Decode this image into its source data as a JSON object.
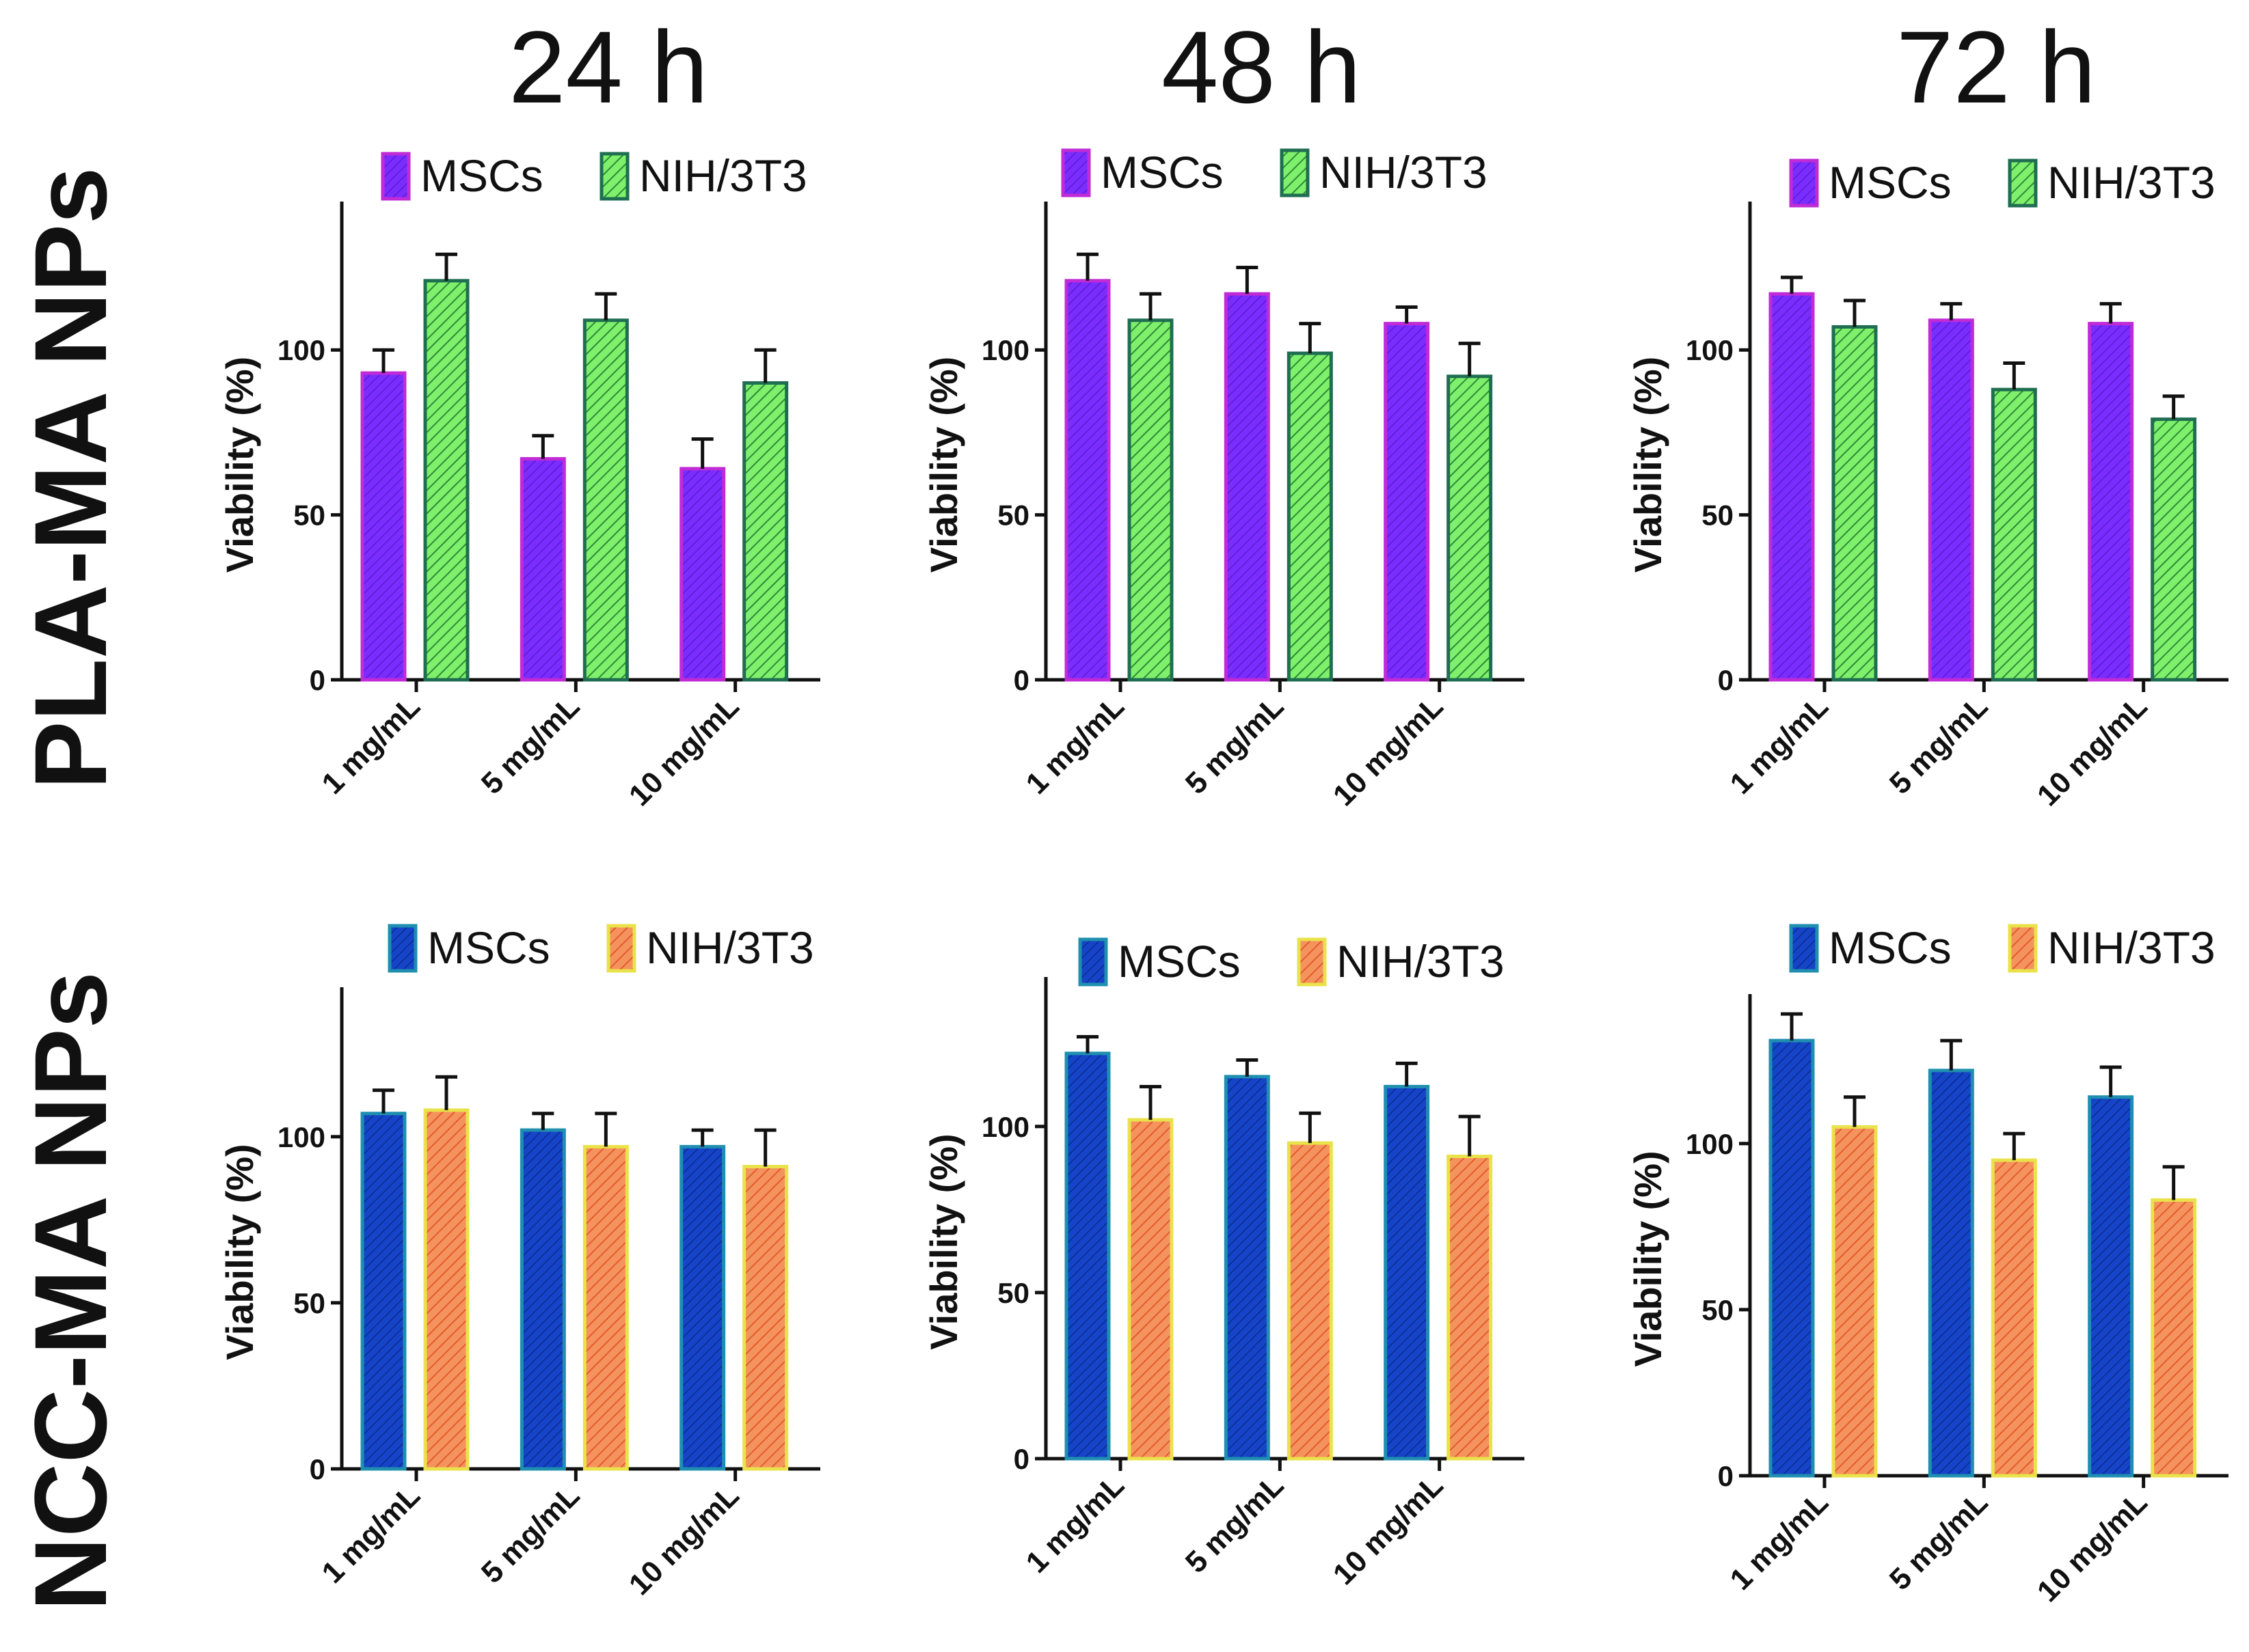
{
  "column_titles": [
    "24 h",
    "48 h",
    "72 h"
  ],
  "row_titles": [
    "PLA-MA NPs",
    "NCC-MA NPs"
  ],
  "colors": {
    "pla_mscs_fill": "#7b2cff",
    "pla_mscs_border": "#c02bd6",
    "pla_nih_fill": "#66e85a",
    "pla_nih_border": "#1f6e52",
    "ncc_mscs_fill": "#1544c8",
    "ncc_mscs_border": "#1f8fb0",
    "ncc_nih_fill": "#f07a46",
    "ncc_nih_border": "#e9e24a"
  },
  "chart_data": [
    {
      "type": "bar",
      "row": "PLA-MA NPs",
      "time": "24 h",
      "ylabel": "Viability (%)",
      "ylim": [
        0,
        145
      ],
      "yticks": [
        0,
        50,
        100
      ],
      "categories": [
        "1 mg/mL",
        "5 mg/mL",
        "10 mg/mL"
      ],
      "series": [
        {
          "name": "MSCs",
          "values": [
            93,
            67,
            64
          ],
          "errors": [
            7,
            7,
            9
          ]
        },
        {
          "name": "NIH/3T3",
          "values": [
            121,
            109,
            90
          ],
          "errors": [
            8,
            8,
            10
          ]
        }
      ]
    },
    {
      "type": "bar",
      "row": "PLA-MA NPs",
      "time": "48 h",
      "ylabel": "Viability (%)",
      "ylim": [
        0,
        145
      ],
      "yticks": [
        0,
        50,
        100
      ],
      "categories": [
        "1 mg/mL",
        "5 mg/mL",
        "10 mg/mL"
      ],
      "series": [
        {
          "name": "MSCs",
          "values": [
            121,
            117,
            108
          ],
          "errors": [
            8,
            8,
            5
          ]
        },
        {
          "name": "NIH/3T3",
          "values": [
            109,
            99,
            92
          ],
          "errors": [
            8,
            9,
            10
          ]
        }
      ]
    },
    {
      "type": "bar",
      "row": "PLA-MA NPs",
      "time": "72 h",
      "ylabel": "Viability (%)",
      "ylim": [
        0,
        145
      ],
      "yticks": [
        0,
        50,
        100
      ],
      "categories": [
        "1 mg/mL",
        "5 mg/mL",
        "10 mg/mL"
      ],
      "series": [
        {
          "name": "MSCs",
          "values": [
            117,
            109,
            108
          ],
          "errors": [
            5,
            5,
            6
          ]
        },
        {
          "name": "NIH/3T3",
          "values": [
            107,
            88,
            79
          ],
          "errors": [
            8,
            8,
            7
          ]
        }
      ]
    },
    {
      "type": "bar",
      "row": "NCC-MA NPs",
      "time": "24 h",
      "ylabel": "Viability (%)",
      "ylim": [
        0,
        145
      ],
      "yticks": [
        0,
        50,
        100
      ],
      "categories": [
        "1 mg/mL",
        "5 mg/mL",
        "10 mg/mL"
      ],
      "series": [
        {
          "name": "MSCs",
          "values": [
            107,
            102,
            97
          ],
          "errors": [
            7,
            5,
            5
          ]
        },
        {
          "name": "NIH/3T3",
          "values": [
            108,
            97,
            91
          ],
          "errors": [
            10,
            10,
            11
          ]
        }
      ]
    },
    {
      "type": "bar",
      "row": "NCC-MA NPs",
      "time": "48 h",
      "ylabel": "Viability (%)",
      "ylim": [
        0,
        145
      ],
      "yticks": [
        0,
        50,
        100
      ],
      "categories": [
        "1 mg/mL",
        "5 mg/mL",
        "10 mg/mL"
      ],
      "series": [
        {
          "name": "MSCs",
          "values": [
            122,
            115,
            112
          ],
          "errors": [
            5,
            5,
            7
          ]
        },
        {
          "name": "NIH/3T3",
          "values": [
            102,
            95,
            91
          ],
          "errors": [
            10,
            9,
            12
          ]
        }
      ]
    },
    {
      "type": "bar",
      "row": "NCC-MA NPs",
      "time": "72 h",
      "ylabel": "Viability (%)",
      "ylim": [
        0,
        145
      ],
      "yticks": [
        0,
        50,
        100
      ],
      "categories": [
        "1 mg/mL",
        "5 mg/mL",
        "10 mg/mL"
      ],
      "series": [
        {
          "name": "MSCs",
          "values": [
            131,
            122,
            114
          ],
          "errors": [
            8,
            9,
            9
          ]
        },
        {
          "name": "NIH/3T3",
          "values": [
            105,
            95,
            83
          ],
          "errors": [
            9,
            8,
            10
          ]
        }
      ]
    }
  ]
}
